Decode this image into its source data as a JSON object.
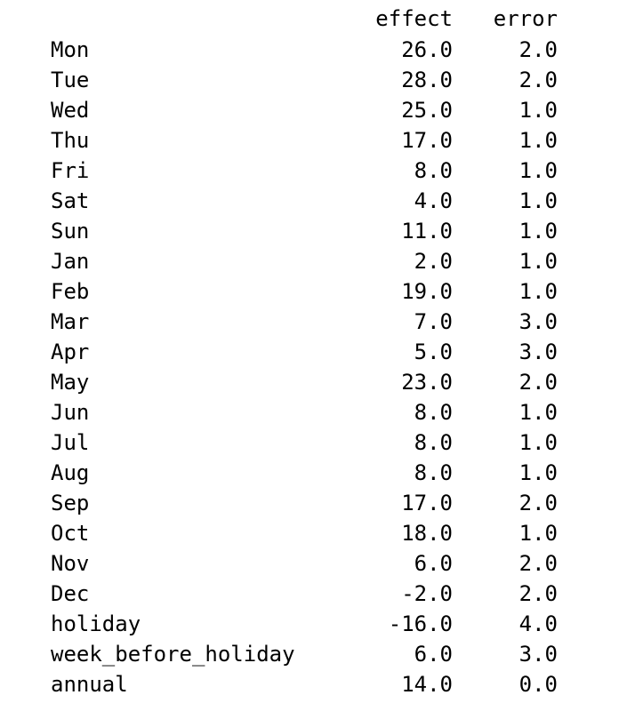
{
  "columns": {
    "effect": "effect",
    "error": "error"
  },
  "rows": [
    {
      "label": "Mon",
      "effect": "26.0",
      "error": "2.0"
    },
    {
      "label": "Tue",
      "effect": "28.0",
      "error": "2.0"
    },
    {
      "label": "Wed",
      "effect": "25.0",
      "error": "1.0"
    },
    {
      "label": "Thu",
      "effect": "17.0",
      "error": "1.0"
    },
    {
      "label": "Fri",
      "effect": "8.0",
      "error": "1.0"
    },
    {
      "label": "Sat",
      "effect": "4.0",
      "error": "1.0"
    },
    {
      "label": "Sun",
      "effect": "11.0",
      "error": "1.0"
    },
    {
      "label": "Jan",
      "effect": "2.0",
      "error": "1.0"
    },
    {
      "label": "Feb",
      "effect": "19.0",
      "error": "1.0"
    },
    {
      "label": "Mar",
      "effect": "7.0",
      "error": "3.0"
    },
    {
      "label": "Apr",
      "effect": "5.0",
      "error": "3.0"
    },
    {
      "label": "May",
      "effect": "23.0",
      "error": "2.0"
    },
    {
      "label": "Jun",
      "effect": "8.0",
      "error": "1.0"
    },
    {
      "label": "Jul",
      "effect": "8.0",
      "error": "1.0"
    },
    {
      "label": "Aug",
      "effect": "8.0",
      "error": "1.0"
    },
    {
      "label": "Sep",
      "effect": "17.0",
      "error": "2.0"
    },
    {
      "label": "Oct",
      "effect": "18.0",
      "error": "1.0"
    },
    {
      "label": "Nov",
      "effect": "6.0",
      "error": "2.0"
    },
    {
      "label": "Dec",
      "effect": "-2.0",
      "error": "2.0"
    },
    {
      "label": "holiday",
      "effect": "-16.0",
      "error": "4.0"
    },
    {
      "label": "week_before_holiday",
      "effect": "6.0",
      "error": "3.0"
    },
    {
      "label": "annual",
      "effect": "14.0",
      "error": "0.0"
    }
  ]
}
